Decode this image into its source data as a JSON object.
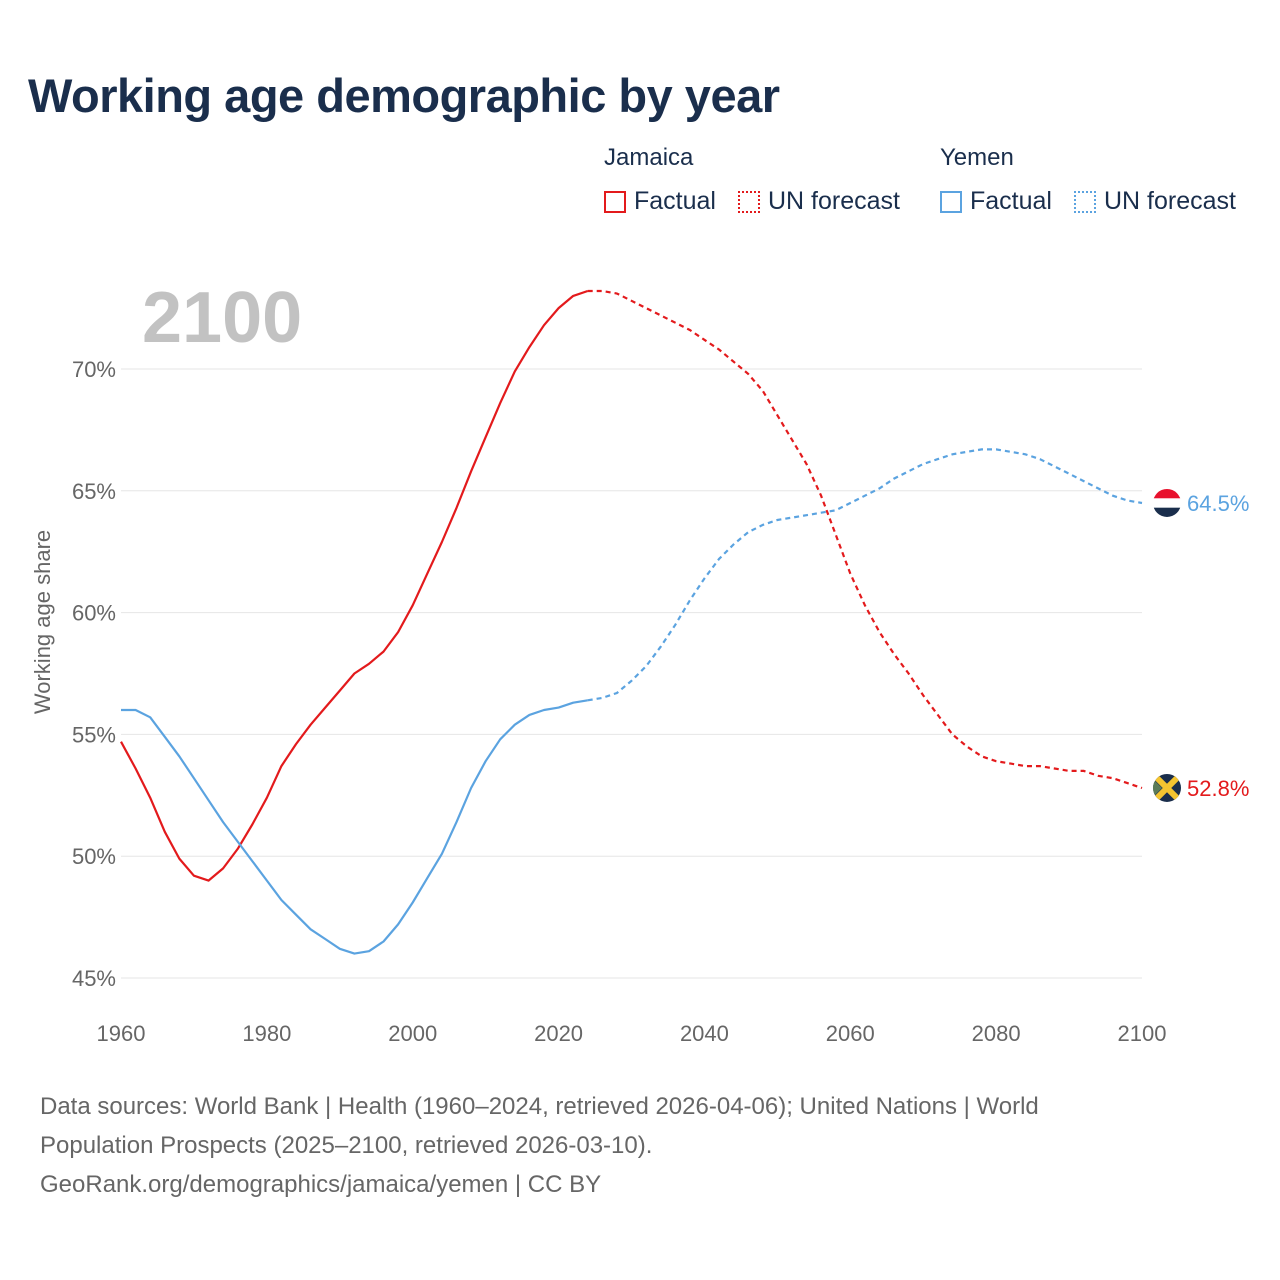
{
  "title": "Working age demographic by year",
  "legend": {
    "groups": [
      {
        "name": "Jamaica",
        "factual_label": "Factual",
        "forecast_label": "UN forecast",
        "color": "#e31a1c"
      },
      {
        "name": "Yemen",
        "factual_label": "Factual",
        "forecast_label": "UN forecast",
        "color": "#5ba3e0"
      }
    ]
  },
  "year_watermark": "2100",
  "footer": {
    "line1": "Data sources: World Bank | Health (1960–2024, retrieved 2026-04-06); United Nations | World",
    "line2": "Population Prospects (2025–2100, retrieved 2026-03-10).",
    "line3": "GeoRank.org/demographics/jamaica/yemen | CC BY"
  },
  "chart_data": {
    "type": "line",
    "title": "Working age demographic by year",
    "xlabel": "",
    "ylabel": "Working age share",
    "xlim": [
      1960,
      2100
    ],
    "ylim": [
      45,
      72
    ],
    "x_ticks": [
      1960,
      1980,
      2000,
      2020,
      2040,
      2060,
      2080,
      2100
    ],
    "x_tick_labels": [
      "1960",
      "1980",
      "2000",
      "2020",
      "2040",
      "2060",
      "2080",
      "2100"
    ],
    "y_ticks": [
      45,
      50,
      55,
      60,
      65,
      70
    ],
    "y_tick_labels": [
      "45%",
      "50%",
      "55%",
      "60%",
      "65%",
      "70%"
    ],
    "forecast_start": 2024,
    "series": [
      {
        "name": "Jamaica",
        "color": "#e31a1c",
        "end_label": "52.8%",
        "points": [
          [
            1960,
            54.7
          ],
          [
            1962,
            53.6
          ],
          [
            1964,
            52.4
          ],
          [
            1966,
            51.0
          ],
          [
            1968,
            49.9
          ],
          [
            1970,
            49.2
          ],
          [
            1972,
            49.0
          ],
          [
            1974,
            49.5
          ],
          [
            1976,
            50.3
          ],
          [
            1978,
            51.3
          ],
          [
            1980,
            52.4
          ],
          [
            1982,
            53.7
          ],
          [
            1984,
            54.6
          ],
          [
            1986,
            55.4
          ],
          [
            1988,
            56.1
          ],
          [
            1990,
            56.8
          ],
          [
            1992,
            57.5
          ],
          [
            1994,
            57.9
          ],
          [
            1996,
            58.4
          ],
          [
            1998,
            59.2
          ],
          [
            2000,
            60.3
          ],
          [
            2002,
            61.6
          ],
          [
            2004,
            62.9
          ],
          [
            2006,
            64.3
          ],
          [
            2008,
            65.8
          ],
          [
            2010,
            67.2
          ],
          [
            2012,
            68.6
          ],
          [
            2014,
            69.9
          ],
          [
            2016,
            70.9
          ],
          [
            2018,
            71.8
          ],
          [
            2020,
            72.5
          ],
          [
            2022,
            73.0
          ],
          [
            2024,
            73.2
          ],
          [
            2026,
            73.2
          ],
          [
            2028,
            73.1
          ],
          [
            2030,
            72.8
          ],
          [
            2032,
            72.5
          ],
          [
            2034,
            72.2
          ],
          [
            2036,
            71.9
          ],
          [
            2038,
            71.6
          ],
          [
            2040,
            71.2
          ],
          [
            2042,
            70.8
          ],
          [
            2044,
            70.3
          ],
          [
            2046,
            69.8
          ],
          [
            2048,
            69.1
          ],
          [
            2050,
            68.1
          ],
          [
            2052,
            67.1
          ],
          [
            2054,
            66.1
          ],
          [
            2056,
            64.8
          ],
          [
            2058,
            63.2
          ],
          [
            2060,
            61.6
          ],
          [
            2062,
            60.3
          ],
          [
            2064,
            59.2
          ],
          [
            2066,
            58.3
          ],
          [
            2068,
            57.5
          ],
          [
            2070,
            56.6
          ],
          [
            2072,
            55.8
          ],
          [
            2074,
            55.0
          ],
          [
            2076,
            54.5
          ],
          [
            2078,
            54.1
          ],
          [
            2080,
            53.9
          ],
          [
            2082,
            53.8
          ],
          [
            2084,
            53.7
          ],
          [
            2086,
            53.7
          ],
          [
            2088,
            53.6
          ],
          [
            2090,
            53.5
          ],
          [
            2092,
            53.5
          ],
          [
            2094,
            53.3
          ],
          [
            2096,
            53.2
          ],
          [
            2098,
            53.0
          ],
          [
            2100,
            52.8
          ]
        ]
      },
      {
        "name": "Yemen",
        "color": "#5ba3e0",
        "end_label": "64.5%",
        "points": [
          [
            1960,
            56.0
          ],
          [
            1962,
            56.0
          ],
          [
            1964,
            55.7
          ],
          [
            1966,
            54.9
          ],
          [
            1968,
            54.1
          ],
          [
            1970,
            53.2
          ],
          [
            1972,
            52.3
          ],
          [
            1974,
            51.4
          ],
          [
            1976,
            50.6
          ],
          [
            1978,
            49.8
          ],
          [
            1980,
            49.0
          ],
          [
            1982,
            48.2
          ],
          [
            1984,
            47.6
          ],
          [
            1986,
            47.0
          ],
          [
            1988,
            46.6
          ],
          [
            1990,
            46.2
          ],
          [
            1992,
            46.0
          ],
          [
            1994,
            46.1
          ],
          [
            1996,
            46.5
          ],
          [
            1998,
            47.2
          ],
          [
            2000,
            48.1
          ],
          [
            2002,
            49.1
          ],
          [
            2004,
            50.1
          ],
          [
            2006,
            51.4
          ],
          [
            2008,
            52.8
          ],
          [
            2010,
            53.9
          ],
          [
            2012,
            54.8
          ],
          [
            2014,
            55.4
          ],
          [
            2016,
            55.8
          ],
          [
            2018,
            56.0
          ],
          [
            2020,
            56.1
          ],
          [
            2022,
            56.3
          ],
          [
            2024,
            56.4
          ],
          [
            2026,
            56.5
          ],
          [
            2028,
            56.7
          ],
          [
            2030,
            57.2
          ],
          [
            2032,
            57.8
          ],
          [
            2034,
            58.6
          ],
          [
            2036,
            59.5
          ],
          [
            2038,
            60.5
          ],
          [
            2040,
            61.4
          ],
          [
            2042,
            62.2
          ],
          [
            2044,
            62.8
          ],
          [
            2046,
            63.3
          ],
          [
            2048,
            63.6
          ],
          [
            2050,
            63.8
          ],
          [
            2052,
            63.9
          ],
          [
            2054,
            64.0
          ],
          [
            2056,
            64.1
          ],
          [
            2058,
            64.2
          ],
          [
            2060,
            64.5
          ],
          [
            2062,
            64.8
          ],
          [
            2064,
            65.1
          ],
          [
            2066,
            65.5
          ],
          [
            2068,
            65.8
          ],
          [
            2070,
            66.1
          ],
          [
            2072,
            66.3
          ],
          [
            2074,
            66.5
          ],
          [
            2076,
            66.6
          ],
          [
            2078,
            66.7
          ],
          [
            2080,
            66.7
          ],
          [
            2082,
            66.6
          ],
          [
            2084,
            66.5
          ],
          [
            2086,
            66.3
          ],
          [
            2088,
            66.0
          ],
          [
            2090,
            65.7
          ],
          [
            2092,
            65.4
          ],
          [
            2094,
            65.1
          ],
          [
            2096,
            64.8
          ],
          [
            2098,
            64.6
          ],
          [
            2100,
            64.5
          ]
        ]
      }
    ]
  }
}
